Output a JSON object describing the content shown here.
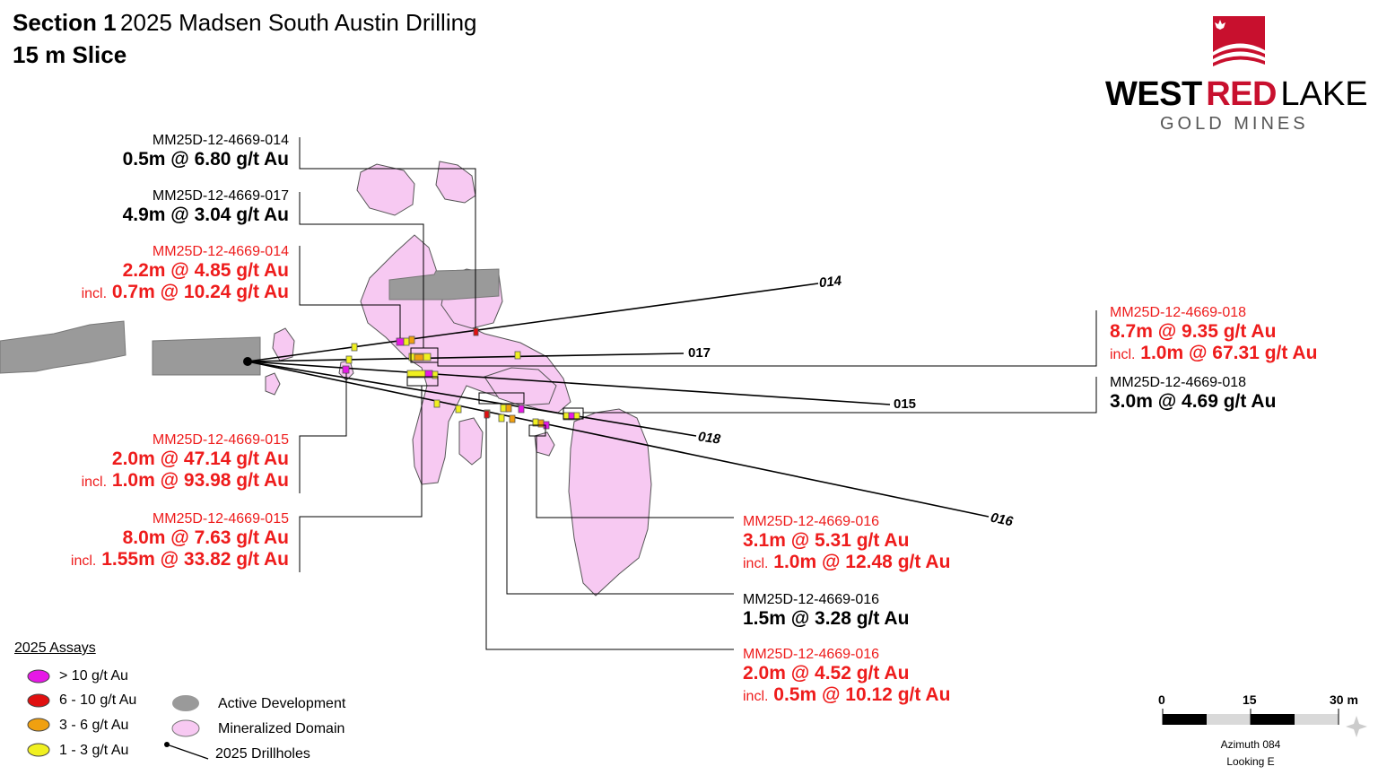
{
  "header": {
    "title_bold": "Section 1",
    "title_rest": "2025 Madsen South Austin Drilling",
    "subtitle": "15 m Slice"
  },
  "logo": {
    "word1": "WEST",
    "word2": "RED",
    "word3": "LAKE",
    "tagline": "GOLD MINES",
    "icon": "maple-leaf-icon"
  },
  "callouts": {
    "c1": {
      "hole": "MM25D-12-4669-014",
      "assay": "0.5m @ 6.80 g/t Au"
    },
    "c2": {
      "hole": "MM25D-12-4669-017",
      "assay": "4.9m @ 3.04 g/t Au"
    },
    "c3": {
      "hole": "MM25D-12-4669-014",
      "assay": "2.2m @ 4.85 g/t Au",
      "incl_word": "incl.",
      "incl": "0.7m @ 10.24 g/t Au"
    },
    "c4": {
      "hole": "MM25D-12-4669-015",
      "assay": "2.0m @ 47.14 g/t Au",
      "incl_word": "incl.",
      "incl": "1.0m @ 93.98 g/t Au"
    },
    "c5": {
      "hole": "MM25D-12-4669-015",
      "assay": "8.0m @ 7.63 g/t Au",
      "incl_word": "incl.",
      "incl": "1.55m @ 33.82 g/t Au"
    },
    "c6": {
      "hole": "MM25D-12-4669-018",
      "assay": "8.7m @ 9.35 g/t Au",
      "incl_word": "incl.",
      "incl": "1.0m @ 67.31 g/t Au"
    },
    "c7": {
      "hole": "MM25D-12-4669-018",
      "assay": "3.0m @ 4.69 g/t Au"
    },
    "c8": {
      "hole": "MM25D-12-4669-016",
      "assay": "3.1m @ 5.31 g/t Au",
      "incl_word": "incl.",
      "incl": "1.0m @ 12.48 g/t Au"
    },
    "c9": {
      "hole": "MM25D-12-4669-016",
      "assay": "1.5m @ 3.28 g/t Au"
    },
    "c10": {
      "hole": "MM25D-12-4669-016",
      "assay": "2.0m @ 4.52 g/t Au",
      "incl_word": "incl.",
      "incl": "0.5m @ 10.12 g/t Au"
    }
  },
  "drillholes": {
    "t014": "014",
    "t017": "017",
    "t015": "015",
    "t018": "018",
    "t016": "016"
  },
  "legend": {
    "title": "2025 Assays",
    "grade_items": [
      {
        "label": "> 10 g/t Au",
        "color": "#e619e6"
      },
      {
        "label": "6 - 10 g/t Au",
        "color": "#e01010"
      },
      {
        "label": "3 - 6 g/t Au",
        "color": "#f0a010"
      },
      {
        "label": "1 - 3 g/t Au",
        "color": "#f0f020"
      }
    ],
    "feature_items": [
      {
        "label": "Active Development",
        "color": "#9a9a9a"
      },
      {
        "label": "Mineralized Domain",
        "color": "#f7c9f2"
      },
      {
        "label": "2025 Drillholes",
        "color": "#000000"
      }
    ]
  },
  "scale_bar": {
    "ticks": [
      "0",
      "15",
      "30 m"
    ],
    "azimuth": "Azimuth 084",
    "looking": "Looking E"
  },
  "colors": {
    "red_text": "#ee1c1c",
    "domain_fill": "#f7c9f2",
    "development": "#9a9a9a",
    "logo_red": "#c8102e"
  }
}
